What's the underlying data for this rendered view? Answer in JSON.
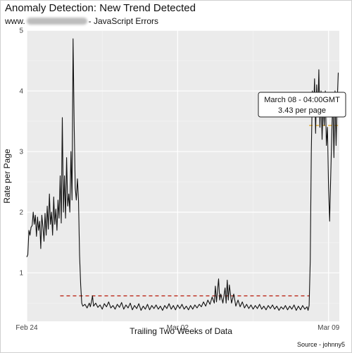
{
  "header": {
    "title": "Anomaly Detection: New Trend Detected",
    "subtitle_prefix": "www.",
    "subtitle_suffix": "- JavaScript Errors"
  },
  "caption": "Source - johnny5",
  "tooltip": {
    "line1": "March 08 - 04:00GMT",
    "line2": "3.43 per page"
  },
  "chart_data": {
    "type": "line",
    "xlabel": "Trailing Two Weeks of Data",
    "ylabel": "Rate per Page",
    "xlim": [
      0,
      14.5
    ],
    "ylim": [
      0.2,
      5.0
    ],
    "x_ticks": [
      {
        "x": 0,
        "label": "Feb 24"
      },
      {
        "x": 7,
        "label": "Mar 02"
      },
      {
        "x": 14,
        "label": "Mar 09"
      }
    ],
    "y_ticks": [
      1,
      2,
      3,
      4,
      5
    ],
    "grid": true,
    "colors": {
      "line": "#111111",
      "baseline": "#c0392b",
      "trend": "#e69f00",
      "panel": "#ebebeb"
    },
    "series": [
      {
        "points": [
          [
            0.0,
            1.26
          ],
          [
            0.05,
            1.3
          ],
          [
            0.1,
            1.7
          ],
          [
            0.15,
            1.62
          ],
          [
            0.2,
            1.75
          ],
          [
            0.25,
            1.78
          ],
          [
            0.3,
            2.0
          ],
          [
            0.35,
            1.8
          ],
          [
            0.4,
            1.95
          ],
          [
            0.45,
            1.6
          ],
          [
            0.5,
            1.92
          ],
          [
            0.55,
            1.7
          ],
          [
            0.6,
            1.85
          ],
          [
            0.65,
            1.4
          ],
          [
            0.7,
            1.95
          ],
          [
            0.75,
            1.75
          ],
          [
            0.8,
            1.52
          ],
          [
            0.85,
            1.98
          ],
          [
            0.9,
            1.62
          ],
          [
            0.95,
            2.1
          ],
          [
            1.0,
            1.72
          ],
          [
            1.05,
            2.3
          ],
          [
            1.1,
            1.8
          ],
          [
            1.15,
            2.0
          ],
          [
            1.2,
            1.62
          ],
          [
            1.25,
            2.25
          ],
          [
            1.3,
            1.8
          ],
          [
            1.35,
            2.05
          ],
          [
            1.4,
            1.7
          ],
          [
            1.45,
            2.2
          ],
          [
            1.5,
            1.9
          ],
          [
            1.55,
            2.6
          ],
          [
            1.6,
            1.82
          ],
          [
            1.65,
            3.56
          ],
          [
            1.7,
            2.0
          ],
          [
            1.75,
            2.6
          ],
          [
            1.8,
            1.9
          ],
          [
            1.85,
            2.9
          ],
          [
            1.9,
            2.1
          ],
          [
            1.95,
            2.3
          ],
          [
            2.0,
            2.0
          ],
          [
            2.05,
            3.0
          ],
          [
            2.1,
            2.2
          ],
          [
            2.15,
            4.86
          ],
          [
            2.2,
            3.4
          ],
          [
            2.25,
            2.4
          ],
          [
            2.3,
            2.2
          ],
          [
            2.35,
            2.55
          ],
          [
            2.4,
            2.2
          ],
          [
            2.45,
            1.3
          ],
          [
            2.5,
            0.8
          ],
          [
            2.55,
            0.5
          ],
          [
            2.6,
            0.45
          ],
          [
            2.7,
            0.48
          ],
          [
            2.8,
            0.42
          ],
          [
            2.9,
            0.5
          ],
          [
            2.95,
            0.44
          ],
          [
            3.0,
            0.52
          ],
          [
            3.05,
            0.62
          ],
          [
            3.1,
            0.45
          ],
          [
            3.2,
            0.5
          ],
          [
            3.3,
            0.43
          ],
          [
            3.4,
            0.47
          ],
          [
            3.5,
            0.4
          ],
          [
            3.6,
            0.49
          ],
          [
            3.7,
            0.44
          ],
          [
            3.8,
            0.52
          ],
          [
            3.9,
            0.42
          ],
          [
            4.0,
            0.46
          ],
          [
            4.1,
            0.4
          ],
          [
            4.2,
            0.48
          ],
          [
            4.3,
            0.43
          ],
          [
            4.4,
            0.51
          ],
          [
            4.5,
            0.4
          ],
          [
            4.6,
            0.47
          ],
          [
            4.7,
            0.42
          ],
          [
            4.8,
            0.5
          ],
          [
            4.9,
            0.39
          ],
          [
            5.0,
            0.46
          ],
          [
            5.1,
            0.41
          ],
          [
            5.2,
            0.49
          ],
          [
            5.3,
            0.38
          ],
          [
            5.4,
            0.45
          ],
          [
            5.5,
            0.4
          ],
          [
            5.6,
            0.48
          ],
          [
            5.7,
            0.39
          ],
          [
            5.8,
            0.46
          ],
          [
            5.9,
            0.41
          ],
          [
            6.0,
            0.47
          ],
          [
            6.1,
            0.4
          ],
          [
            6.2,
            0.45
          ],
          [
            6.3,
            0.38
          ],
          [
            6.4,
            0.46
          ],
          [
            6.5,
            0.41
          ],
          [
            6.6,
            0.49
          ],
          [
            6.7,
            0.4
          ],
          [
            6.8,
            0.46
          ],
          [
            6.9,
            0.39
          ],
          [
            7.0,
            0.47
          ],
          [
            7.1,
            0.41
          ],
          [
            7.2,
            0.48
          ],
          [
            7.3,
            0.4
          ],
          [
            7.4,
            0.45
          ],
          [
            7.5,
            0.39
          ],
          [
            7.6,
            0.46
          ],
          [
            7.7,
            0.4
          ],
          [
            7.8,
            0.47
          ],
          [
            7.9,
            0.42
          ],
          [
            8.0,
            0.48
          ],
          [
            8.1,
            0.44
          ],
          [
            8.2,
            0.52
          ],
          [
            8.3,
            0.45
          ],
          [
            8.4,
            0.55
          ],
          [
            8.5,
            0.48
          ],
          [
            8.6,
            0.6
          ],
          [
            8.7,
            0.5
          ],
          [
            8.75,
            0.78
          ],
          [
            8.8,
            0.52
          ],
          [
            8.9,
            0.9
          ],
          [
            8.95,
            0.55
          ],
          [
            9.0,
            0.65
          ],
          [
            9.1,
            0.5
          ],
          [
            9.2,
            0.75
          ],
          [
            9.25,
            0.5
          ],
          [
            9.3,
            0.88
          ],
          [
            9.35,
            0.55
          ],
          [
            9.4,
            0.8
          ],
          [
            9.5,
            0.5
          ],
          [
            9.6,
            0.65
          ],
          [
            9.7,
            0.45
          ],
          [
            9.8,
            0.55
          ],
          [
            9.9,
            0.44
          ],
          [
            10.0,
            0.52
          ],
          [
            10.1,
            0.42
          ],
          [
            10.2,
            0.48
          ],
          [
            10.3,
            0.41
          ],
          [
            10.4,
            0.47
          ],
          [
            10.5,
            0.4
          ],
          [
            10.6,
            0.46
          ],
          [
            10.7,
            0.41
          ],
          [
            10.8,
            0.48
          ],
          [
            10.9,
            0.4
          ],
          [
            11.0,
            0.45
          ],
          [
            11.1,
            0.39
          ],
          [
            11.2,
            0.46
          ],
          [
            11.3,
            0.41
          ],
          [
            11.4,
            0.47
          ],
          [
            11.5,
            0.4
          ],
          [
            11.6,
            0.45
          ],
          [
            11.7,
            0.38
          ],
          [
            11.8,
            0.44
          ],
          [
            11.9,
            0.4
          ],
          [
            12.0,
            0.46
          ],
          [
            12.1,
            0.39
          ],
          [
            12.2,
            0.45
          ],
          [
            12.3,
            0.4
          ],
          [
            12.4,
            0.47
          ],
          [
            12.5,
            0.38
          ],
          [
            12.6,
            0.45
          ],
          [
            12.7,
            0.39
          ],
          [
            12.8,
            0.46
          ],
          [
            12.9,
            0.4
          ],
          [
            13.0,
            0.44
          ],
          [
            13.05,
            0.38
          ],
          [
            13.1,
            0.46
          ],
          [
            13.15,
            1.2
          ],
          [
            13.2,
            3.0
          ],
          [
            13.25,
            4.0
          ],
          [
            13.3,
            3.6
          ],
          [
            13.35,
            4.2
          ],
          [
            13.4,
            3.3
          ],
          [
            13.45,
            4.1
          ],
          [
            13.5,
            3.6
          ],
          [
            13.55,
            4.35
          ],
          [
            13.6,
            3.4
          ],
          [
            13.65,
            4.0
          ],
          [
            13.7,
            3.2
          ],
          [
            13.75,
            3.8
          ],
          [
            13.8,
            3.43
          ],
          [
            13.85,
            4.0
          ],
          [
            13.9,
            3.1
          ],
          [
            13.95,
            3.4
          ],
          [
            14.0,
            2.4
          ],
          [
            14.05,
            1.85
          ],
          [
            14.1,
            2.6
          ],
          [
            14.15,
            3.3
          ],
          [
            14.2,
            3.9
          ],
          [
            14.25,
            2.9
          ],
          [
            14.3,
            4.0
          ],
          [
            14.35,
            3.1
          ],
          [
            14.4,
            3.8
          ],
          [
            14.45,
            4.3
          ]
        ]
      }
    ],
    "reference_lines": [
      {
        "kind": "baseline",
        "y": 0.62,
        "x_from": 1.55,
        "x_to": 13.1
      },
      {
        "kind": "trend",
        "y": 3.43,
        "x_from": 13.1,
        "x_to": 14.5
      }
    ]
  }
}
